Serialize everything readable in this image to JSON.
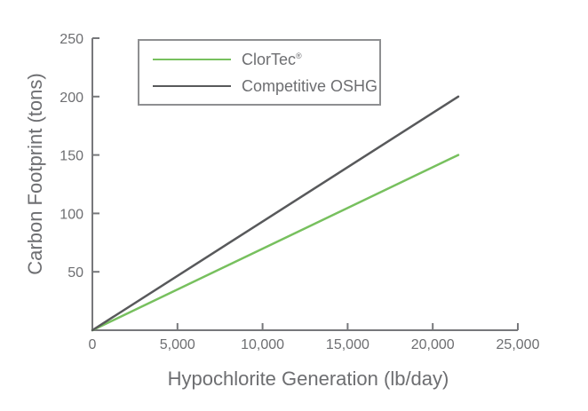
{
  "chart_data": {
    "type": "line",
    "title": "",
    "xlabel": "Hypochlorite Generation (lb/day)",
    "ylabel": "Carbon Footprint (tons)",
    "xlim": [
      0,
      25000
    ],
    "ylim": [
      0,
      250
    ],
    "grid": false,
    "legend_position": "top-left-inside",
    "x_ticks": [
      {
        "value": 0,
        "label": "0"
      },
      {
        "value": 5000,
        "label": "5,000"
      },
      {
        "value": 10000,
        "label": "10,000"
      },
      {
        "value": 15000,
        "label": "15,000"
      },
      {
        "value": 20000,
        "label": "20,000"
      },
      {
        "value": 25000,
        "label": "25,000"
      }
    ],
    "y_ticks": [
      {
        "value": 50,
        "label": "50"
      },
      {
        "value": 100,
        "label": "100"
      },
      {
        "value": 150,
        "label": "150"
      },
      {
        "value": 200,
        "label": "200"
      },
      {
        "value": 250,
        "label": "250"
      }
    ],
    "series": [
      {
        "name": "ClorTec",
        "color": "#77c05e",
        "points": [
          [
            0,
            0
          ],
          [
            21500,
            150
          ]
        ]
      },
      {
        "name": "Competitive OSHG",
        "color": "#58595b",
        "points": [
          [
            0,
            0
          ],
          [
            21500,
            200
          ]
        ]
      }
    ]
  },
  "legend": {
    "items": [
      {
        "label": "ClorTec",
        "suffix": "®",
        "color": "#77c05e"
      },
      {
        "label": "Competitive OSHG",
        "suffix": "",
        "color": "#58595b"
      }
    ]
  },
  "colors": {
    "axis": "#77787b",
    "text": "#6d6e71",
    "legend_border": "#8e8f91",
    "background": "#ffffff"
  }
}
